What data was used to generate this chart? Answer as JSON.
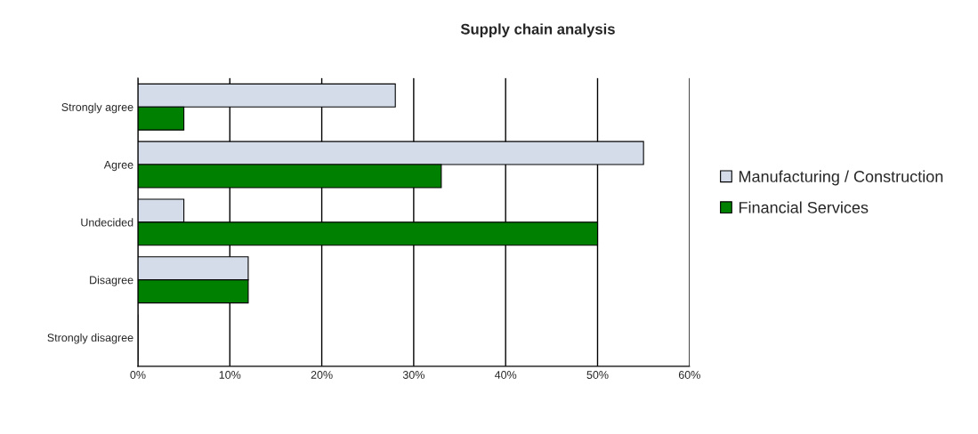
{
  "chart_data": {
    "type": "bar",
    "orientation": "horizontal",
    "title": "Supply chain analysis",
    "categories": [
      "Strongly agree",
      "Agree",
      "Undecided",
      "Disagree",
      "Strongly disagree"
    ],
    "series": [
      {
        "name": "Manufacturing / Construction",
        "color": "#d4dcea",
        "values": [
          28,
          55,
          5,
          12,
          0
        ]
      },
      {
        "name": "Financial Services",
        "color": "#008000",
        "values": [
          5,
          33,
          50,
          12,
          0
        ]
      }
    ],
    "xlim": [
      0,
      60
    ],
    "xticks": [
      {
        "value": 0,
        "label": "0%"
      },
      {
        "value": 10,
        "label": "10%"
      },
      {
        "value": 20,
        "label": "20%"
      },
      {
        "value": 30,
        "label": "30%"
      },
      {
        "value": 40,
        "label": "40%"
      },
      {
        "value": 50,
        "label": "50%"
      },
      {
        "value": 60,
        "label": "60%"
      }
    ],
    "grid": "x",
    "legend": "right"
  }
}
